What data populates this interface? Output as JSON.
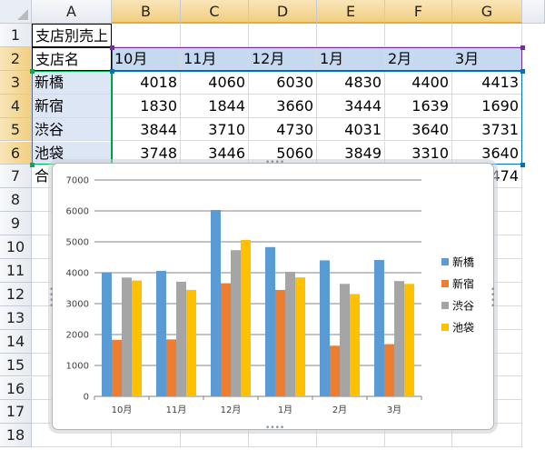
{
  "spreadsheet": {
    "columns": [
      "A",
      "B",
      "C",
      "D",
      "E",
      "F",
      "G"
    ],
    "rows": [
      "1",
      "2",
      "3",
      "4",
      "5",
      "6",
      "7",
      "8",
      "9",
      "10",
      "11",
      "12",
      "13",
      "14",
      "15",
      "16",
      "17",
      "18"
    ],
    "title": "支店別売上",
    "header_row": [
      "支店名",
      "10月",
      "11月",
      "12月",
      "1月",
      "2月",
      "3月"
    ],
    "data_rows": [
      [
        "新橋",
        "4018",
        "4060",
        "6030",
        "4830",
        "4400",
        "4413"
      ],
      [
        "新宿",
        "1830",
        "1844",
        "3660",
        "3444",
        "1639",
        "1690"
      ],
      [
        "渋谷",
        "3844",
        "3710",
        "4730",
        "4031",
        "3640",
        "3731"
      ],
      [
        "池袋",
        "3748",
        "3446",
        "5060",
        "3849",
        "3310",
        "3640"
      ]
    ],
    "total_row": {
      "label_visible": "合",
      "last_visible": "474"
    }
  },
  "colors": {
    "series": [
      "#5b9bd5",
      "#ed7d31",
      "#a5a5a5",
      "#ffc000"
    ]
  },
  "chart_data": {
    "type": "bar",
    "categories": [
      "10月",
      "11月",
      "12月",
      "1月",
      "2月",
      "3月"
    ],
    "series": [
      {
        "name": "新橋",
        "values": [
          4018,
          4060,
          6030,
          4830,
          4400,
          4413
        ]
      },
      {
        "name": "新宿",
        "values": [
          1830,
          1844,
          3660,
          3444,
          1639,
          1690
        ]
      },
      {
        "name": "渋谷",
        "values": [
          3844,
          3710,
          4730,
          4031,
          3640,
          3731
        ]
      },
      {
        "name": "池袋",
        "values": [
          3748,
          3446,
          5060,
          3849,
          3310,
          3640
        ]
      }
    ],
    "yticks": [
      "0",
      "1000",
      "2000",
      "3000",
      "4000",
      "5000",
      "6000",
      "7000"
    ],
    "ylim": [
      0,
      7000
    ],
    "grid": true,
    "legend": "right",
    "title": "",
    "xlabel": "",
    "ylabel": ""
  }
}
